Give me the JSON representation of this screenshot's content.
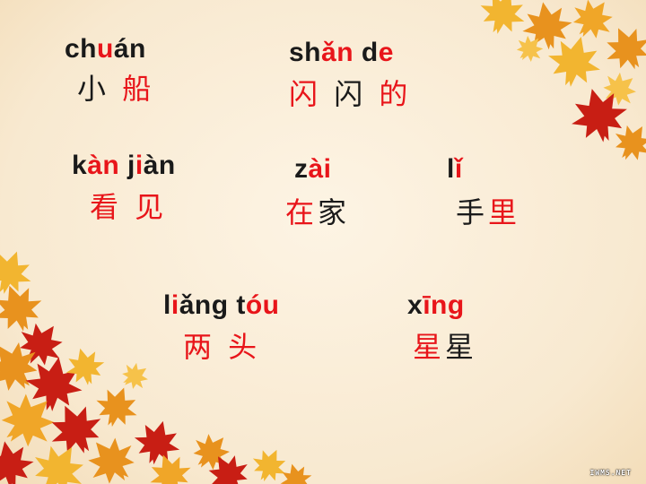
{
  "words": [
    {
      "id": "chuan",
      "pinyin": [
        {
          "t": "ch"
        },
        {
          "t": "u",
          "red": true
        },
        {
          "t": "án"
        }
      ],
      "hanzi": [
        {
          "t": "小 "
        },
        {
          "t": "船",
          "red": true
        }
      ]
    },
    {
      "id": "shande",
      "pinyin": [
        {
          "t": "sh"
        },
        {
          "t": "ǎn",
          "red": true
        },
        {
          "t": " d"
        },
        {
          "t": "e",
          "red": true
        }
      ],
      "hanzi": [
        {
          "t": "闪",
          "red": true
        },
        {
          "t": " 闪 "
        },
        {
          "t": "的",
          "red": true
        }
      ]
    },
    {
      "id": "kanjian",
      "pinyin": [
        {
          "t": "k"
        },
        {
          "t": "àn",
          "red": true
        },
        {
          "t": " j"
        },
        {
          "t": "i",
          "red": true
        },
        {
          "t": "àn"
        }
      ],
      "hanzi": [
        {
          "t": "看  见",
          "red": true
        }
      ]
    },
    {
      "id": "zai",
      "pinyin": [
        {
          "t": "z"
        },
        {
          "t": "ài",
          "red": true
        }
      ],
      "hanzi": [
        {
          "t": "在",
          "red": true
        },
        {
          "t": "家"
        }
      ]
    },
    {
      "id": "li",
      "pinyin": [
        {
          "t": "l"
        },
        {
          "t": "ǐ",
          "red": true
        }
      ],
      "hanzi": [
        {
          "t": "手"
        },
        {
          "t": "里",
          "red": true
        }
      ]
    },
    {
      "id": "liangtou",
      "pinyin": [
        {
          "t": "l"
        },
        {
          "t": "i",
          "red": true
        },
        {
          "t": "ǎng t"
        },
        {
          "t": "óu",
          "red": true
        }
      ],
      "hanzi": [
        {
          "t": "两  头",
          "red": true
        }
      ]
    },
    {
      "id": "xing",
      "pinyin": [
        {
          "t": "x"
        },
        {
          "t": "īng",
          "red": true
        }
      ],
      "hanzi": [
        {
          "t": "星",
          "red": true
        },
        {
          "t": "星"
        }
      ]
    }
  ],
  "watermark": "IWMS.NET",
  "colors": {
    "background": "#f9ecd6",
    "accent_red": "#e8151a",
    "text": "#1a1a1a",
    "leaf_orange": "#e8921e",
    "leaf_red": "#c81e14",
    "leaf_yellow": "#f2b530"
  }
}
